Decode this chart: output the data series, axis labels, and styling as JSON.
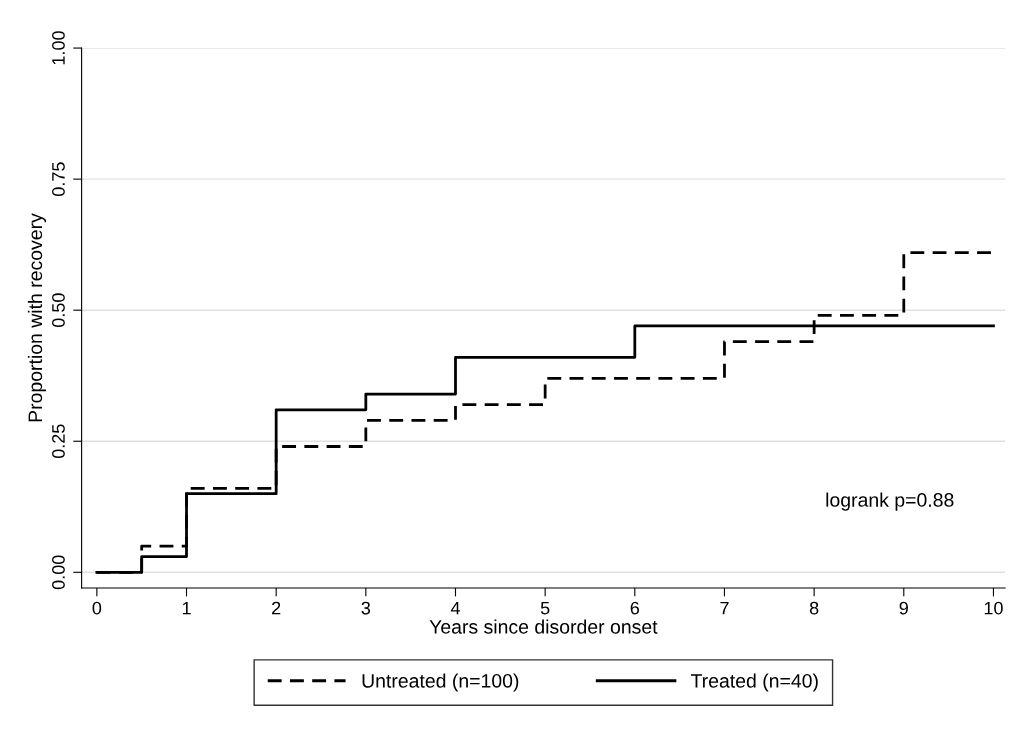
{
  "chart_data": {
    "type": "step",
    "xlabel": "Years since disorder onset",
    "ylabel": "Proportion with recovery",
    "series": [
      {
        "name": "Untreated (n=100)",
        "color": "#000000",
        "line_style": "dashed",
        "x": [
          0,
          0.5,
          1,
          2,
          3,
          4,
          5,
          7,
          8,
          9,
          10
        ],
        "values": [
          0,
          0.05,
          0.16,
          0.24,
          0.29,
          0.32,
          0.37,
          0.44,
          0.49,
          0.61,
          0.61
        ]
      },
      {
        "name": "Treated (n=40)",
        "color": "#000000",
        "line_style": "solid",
        "x": [
          0,
          0.5,
          1,
          2,
          3,
          4,
          6,
          10
        ],
        "values": [
          0,
          0.03,
          0.15,
          0.31,
          0.34,
          0.41,
          0.47,
          0.47
        ]
      }
    ],
    "xlim": [
      -0.17,
      10.13
    ],
    "ylim": [
      -0.03,
      1.0
    ],
    "xticks": [
      0,
      1,
      2,
      3,
      4,
      5,
      6,
      7,
      8,
      9,
      10
    ],
    "yticks": [
      {
        "value": 0,
        "label": "0.00"
      },
      {
        "value": 0.25,
        "label": "0.25"
      },
      {
        "value": 0.5,
        "label": "0.50"
      },
      {
        "value": 0.75,
        "label": "0.75"
      },
      {
        "value": 1,
        "label": "1.00"
      }
    ],
    "grid": "y",
    "legend": "bottom",
    "marker": "none",
    "annotations": [
      "logrank p=0.88"
    ]
  }
}
